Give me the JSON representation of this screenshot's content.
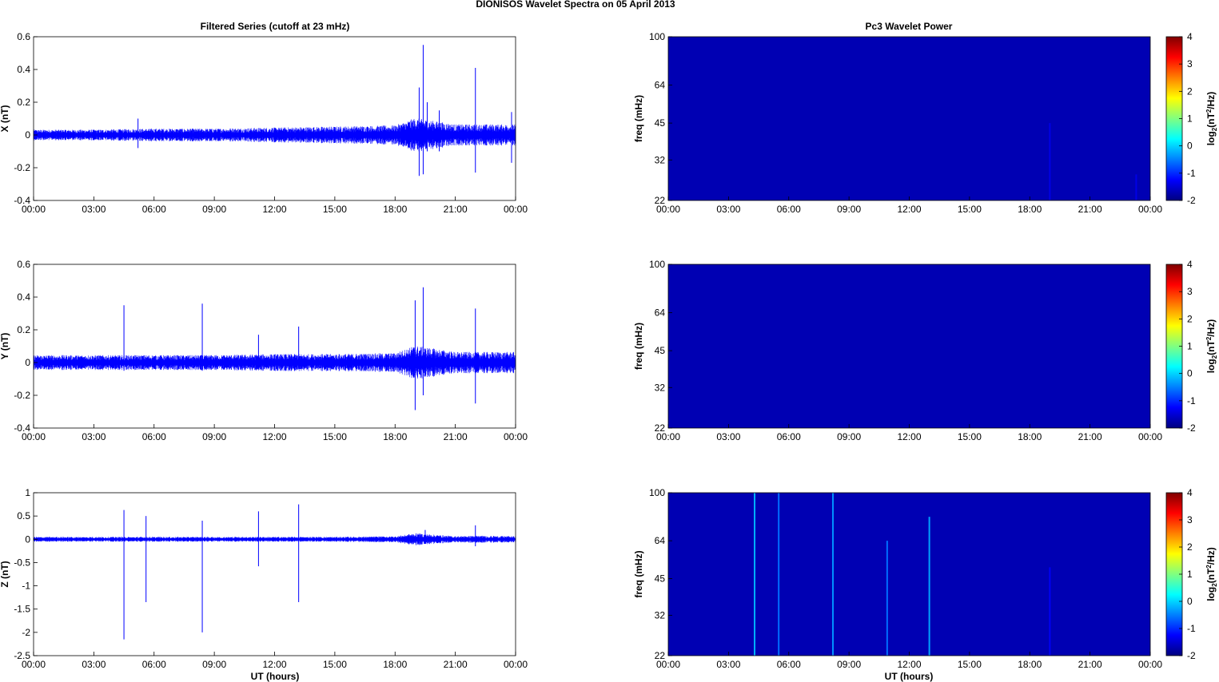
{
  "suptitle": "DIONISOS Wavelet Spectra on 05 April     2013",
  "left_title": "Filtered Series (cutoff at 23 mHz)",
  "right_title": "Pc3 Wavelet Power",
  "time_ticks": [
    "00:00",
    "03:00",
    "06:00",
    "09:00",
    "12:00",
    "15:00",
    "18:00",
    "21:00",
    "00:00"
  ],
  "x_label": "UT (hours)",
  "colorbar": {
    "ticks": [
      "4",
      "3",
      "2",
      "1",
      "0",
      "-1",
      "-2"
    ],
    "label_base": "log",
    "label_sub": "2",
    "label_mid": "(nT",
    "label_sup": "2",
    "label_end": "/Hz)"
  },
  "colors": {
    "series": "#0000ff",
    "spectrogram_bg": "#00008f"
  },
  "chart_data": [
    {
      "type": "line",
      "panel": "x-series",
      "ylabel": "X (nT)",
      "ylim": [
        -0.4,
        0.6
      ],
      "yticks": [
        "0.6",
        "0.4",
        "0.2",
        "0",
        "-0.2",
        "-0.4"
      ],
      "yticks_values": [
        0.6,
        0.4,
        0.2,
        0,
        -0.2,
        -0.4
      ],
      "xlim_hours": [
        0,
        24
      ],
      "noise_envelope": {
        "x": [
          0,
          3,
          6,
          9,
          12,
          15,
          18,
          19,
          21,
          22,
          24
        ],
        "amp": [
          0.025,
          0.025,
          0.03,
          0.03,
          0.035,
          0.04,
          0.045,
          0.08,
          0.05,
          0.05,
          0.05
        ]
      },
      "spikes": [
        {
          "x": 19.2,
          "y_max": 0.29,
          "y_min": -0.25
        },
        {
          "x": 19.4,
          "y_max": 0.55,
          "y_min": -0.24
        },
        {
          "x": 19.6,
          "y_max": 0.2,
          "y_min": -0.1
        },
        {
          "x": 20.2,
          "y_max": 0.15,
          "y_min": -0.1
        },
        {
          "x": 22.0,
          "y_max": 0.41,
          "y_min": -0.23
        },
        {
          "x": 23.8,
          "y_max": 0.14,
          "y_min": -0.17
        },
        {
          "x": 5.2,
          "y_max": 0.1,
          "y_min": -0.08
        }
      ]
    },
    {
      "type": "heatmap",
      "panel": "x-wavelet",
      "ylabel": "freq (mHz)",
      "ylim": [
        22,
        100
      ],
      "yscale": "log",
      "yticks": [
        "100",
        "64",
        "45",
        "32",
        "22"
      ],
      "yticks_values": [
        100,
        64,
        45,
        32,
        22
      ],
      "clim": [
        -2,
        4
      ],
      "background_level": -1.7,
      "streaks": [
        {
          "x": 19.0,
          "f_top": 45,
          "level": -1.4
        },
        {
          "x": 23.3,
          "f_top": 28,
          "level": -1.4
        }
      ]
    },
    {
      "type": "line",
      "panel": "y-series",
      "ylabel": "Y (nT)",
      "ylim": [
        -0.4,
        0.6
      ],
      "yticks": [
        "0.6",
        "0.4",
        "0.2",
        "0",
        "-0.2",
        "-0.4"
      ],
      "yticks_values": [
        0.6,
        0.4,
        0.2,
        0,
        -0.2,
        -0.4
      ],
      "xlim_hours": [
        0,
        24
      ],
      "noise_envelope": {
        "x": [
          0,
          3,
          6,
          9,
          12,
          15,
          18,
          19,
          21,
          22,
          24
        ],
        "amp": [
          0.035,
          0.035,
          0.035,
          0.035,
          0.04,
          0.04,
          0.045,
          0.08,
          0.05,
          0.05,
          0.05
        ]
      },
      "spikes": [
        {
          "x": 4.5,
          "y_max": 0.35,
          "y_min": -0.05
        },
        {
          "x": 8.4,
          "y_max": 0.36,
          "y_min": -0.05
        },
        {
          "x": 11.2,
          "y_max": 0.17,
          "y_min": -0.04
        },
        {
          "x": 13.2,
          "y_max": 0.22,
          "y_min": -0.04
        },
        {
          "x": 19.0,
          "y_max": 0.38,
          "y_min": -0.29
        },
        {
          "x": 19.4,
          "y_max": 0.46,
          "y_min": -0.2
        },
        {
          "x": 22.0,
          "y_max": 0.33,
          "y_min": -0.25
        }
      ]
    },
    {
      "type": "heatmap",
      "panel": "y-wavelet",
      "ylabel": "freq (mHz)",
      "ylim": [
        22,
        100
      ],
      "yscale": "log",
      "yticks": [
        "100",
        "64",
        "45",
        "32",
        "22"
      ],
      "yticks_values": [
        100,
        64,
        45,
        32,
        22
      ],
      "clim": [
        -2,
        4
      ],
      "background_level": -1.7,
      "streaks": []
    },
    {
      "type": "line",
      "panel": "z-series",
      "ylabel": "Z (nT)",
      "ylim": [
        -2.5,
        1
      ],
      "yticks": [
        "1",
        "0.5",
        "0",
        "-0.5",
        "-1",
        "-1.5",
        "-2",
        "-2.5"
      ],
      "yticks_values": [
        1,
        0.5,
        0,
        -0.5,
        -1,
        -1.5,
        -2,
        -2.5
      ],
      "xlim_hours": [
        0,
        24
      ],
      "noise_envelope": {
        "x": [
          0,
          3,
          6,
          9,
          12,
          15,
          18,
          19,
          21,
          22,
          24
        ],
        "amp": [
          0.04,
          0.04,
          0.04,
          0.04,
          0.04,
          0.04,
          0.05,
          0.1,
          0.05,
          0.06,
          0.05
        ]
      },
      "spikes": [
        {
          "x": 4.5,
          "y_max": 0.63,
          "y_min": -2.15
        },
        {
          "x": 5.6,
          "y_max": 0.5,
          "y_min": -1.35
        },
        {
          "x": 8.4,
          "y_max": 0.4,
          "y_min": -2.0
        },
        {
          "x": 11.2,
          "y_max": 0.6,
          "y_min": -0.58
        },
        {
          "x": 13.2,
          "y_max": 0.75,
          "y_min": -1.35
        },
        {
          "x": 19.5,
          "y_max": 0.2,
          "y_min": -0.1
        },
        {
          "x": 22.0,
          "y_max": 0.3,
          "y_min": -0.15
        }
      ]
    },
    {
      "type": "heatmap",
      "panel": "z-wavelet",
      "ylabel": "freq (mHz)",
      "ylim": [
        22,
        100
      ],
      "yscale": "log",
      "yticks": [
        "100",
        "64",
        "45",
        "32",
        "22"
      ],
      "yticks_values": [
        100,
        64,
        45,
        32,
        22
      ],
      "clim": [
        -2,
        4
      ],
      "background_level": -1.7,
      "streaks": [
        {
          "x": 4.3,
          "f_top": 100,
          "level": -0.2
        },
        {
          "x": 5.5,
          "f_top": 100,
          "level": -0.6
        },
        {
          "x": 8.2,
          "f_top": 100,
          "level": -0.4
        },
        {
          "x": 10.9,
          "f_top": 64,
          "level": -0.6
        },
        {
          "x": 13.0,
          "f_top": 80,
          "level": -0.3
        },
        {
          "x": 19.0,
          "f_top": 50,
          "level": -1.3
        }
      ]
    }
  ]
}
